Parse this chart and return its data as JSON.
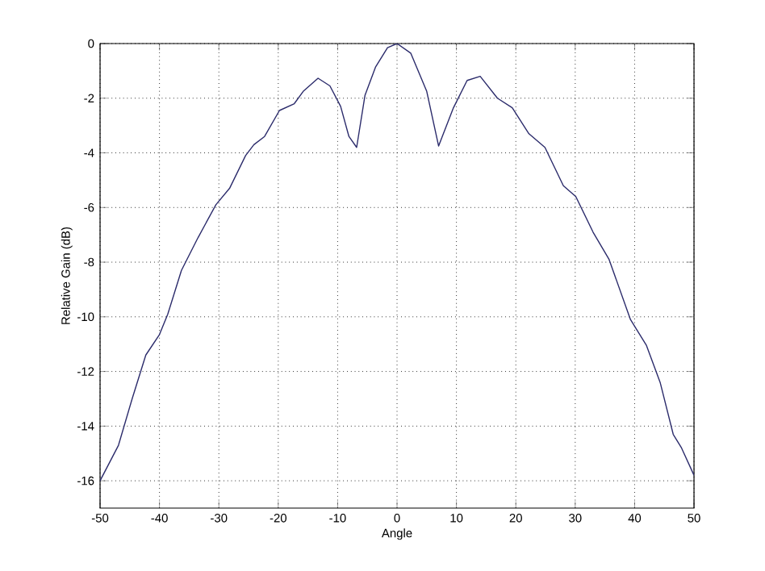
{
  "chart_data": {
    "type": "line",
    "xlabel": "Angle",
    "ylabel": "Relative Gain (dB)",
    "xlim": [
      -50,
      50
    ],
    "ylim": [
      -17,
      0
    ],
    "xticks": [
      -50,
      -40,
      -30,
      -20,
      -10,
      0,
      10,
      20,
      30,
      40,
      50
    ],
    "yticks": [
      -16,
      -14,
      -12,
      -10,
      -8,
      -6,
      -4,
      -2,
      0
    ],
    "grid": true,
    "marker": "none",
    "line_style": "solid",
    "series": [
      {
        "color": "#2b2b6b",
        "x": [
          -50,
          -46.9,
          -44.6,
          -42.3,
          -40,
          -38.6,
          -36.3,
          -33.5,
          -30.5,
          -28.2,
          -25.5,
          -24.1,
          -22.3,
          -19.8,
          -17.3,
          -15.8,
          -13.3,
          -11.3,
          -9.5,
          -8.1,
          -6.8,
          -5.4,
          -3.6,
          -1.6,
          0,
          2.3,
          5,
          7,
          9.5,
          11.8,
          14,
          16.9,
          19.4,
          22.2,
          24.9,
          28,
          30.1,
          33,
          35.7,
          39.3,
          42,
          44.3,
          46.5,
          47.9,
          50
        ],
        "values": [
          -16.0,
          -14.7,
          -13.0,
          -11.4,
          -10.65,
          -9.9,
          -8.3,
          -7.1,
          -5.9,
          -5.3,
          -4.1,
          -3.7,
          -3.4,
          -2.45,
          -2.2,
          -1.75,
          -1.27,
          -1.55,
          -2.3,
          -3.4,
          -3.8,
          -1.9,
          -0.85,
          -0.15,
          0,
          -0.35,
          -1.75,
          -3.75,
          -2.35,
          -1.35,
          -1.2,
          -2.0,
          -2.35,
          -3.3,
          -3.8,
          -5.2,
          -5.6,
          -6.9,
          -7.9,
          -10.1,
          -11.05,
          -12.4,
          -14.3,
          -14.8,
          -15.8
        ]
      }
    ]
  }
}
